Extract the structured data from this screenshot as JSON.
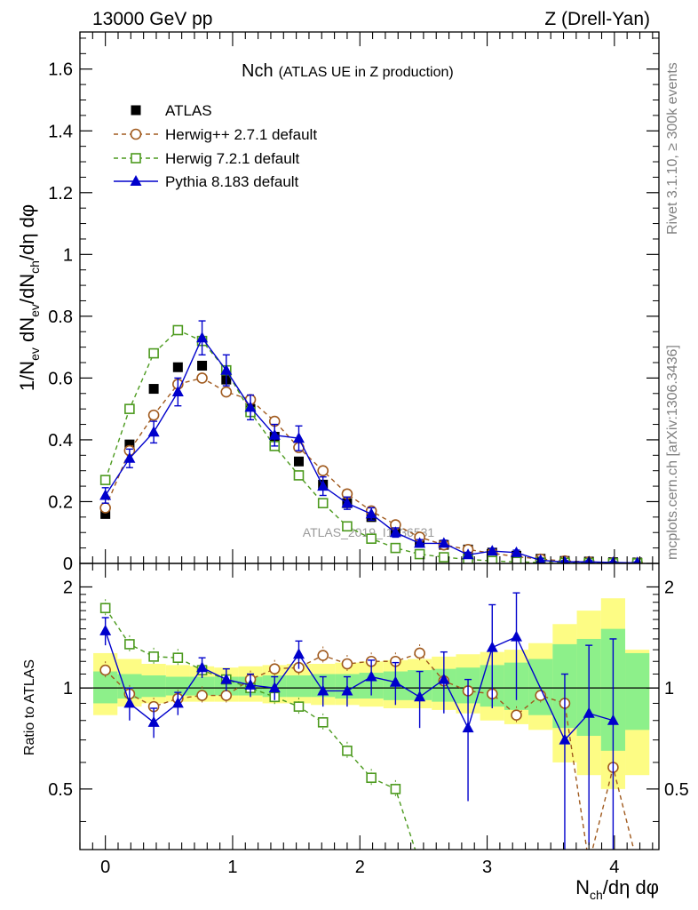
{
  "header": {
    "left": "13000 GeV pp",
    "right": "Z (Drell-Yan)"
  },
  "side_labels": {
    "rivet": "Rivet 3.1.10, ≥ 300k events",
    "mcplots": "mcplots.cern.ch [arXiv:1306.3436]"
  },
  "watermark": "ATLAS_2019_I1736531",
  "chart_data": [
    {
      "type": "scatter",
      "panel": "main",
      "title_main": "Nch",
      "title_sub": "(ATLAS UE in Z production)",
      "ylabel": "1/Nev dNev/dNch/dη dφ",
      "ylabel_parts": {
        "a": "1/N",
        "a_sub": "ev",
        "b": " dN",
        "b_sub": "ev",
        "c": "/dN",
        "c_sub": "ch",
        "d": "/dη dφ"
      },
      "xlim": [
        -0.2,
        4.35
      ],
      "ylim": [
        0,
        1.72
      ],
      "y_ticks": [
        0,
        0.2,
        0.4,
        0.6,
        0.8,
        1,
        1.2,
        1.4,
        1.6
      ],
      "y_tick_labels": [
        "0",
        "0.2",
        "0.4",
        "0.6",
        "0.8",
        "1",
        "1.2",
        "1.4",
        "1.6"
      ],
      "x": [
        0,
        0.19,
        0.38,
        0.57,
        0.76,
        0.95,
        1.14,
        1.33,
        1.52,
        1.71,
        1.9,
        2.09,
        2.28,
        2.47,
        2.66,
        2.85,
        3.04,
        3.23,
        3.42,
        3.61,
        3.8,
        3.99,
        4.18
      ],
      "legend": [
        "ATLAS",
        "Herwig++ 2.7.1 default",
        "Herwig 7.2.1 default",
        "Pythia 8.183 default"
      ],
      "series": [
        {
          "name": "ATLAS",
          "color": "#000000",
          "values": [
            0.16,
            0.385,
            0.565,
            0.635,
            0.64,
            0.595,
            0.5,
            0.41,
            0.33,
            0.255,
            0.195,
            0.15,
            0.105,
            0.07,
            0.06,
            0.045,
            0.035,
            0.025,
            0.015,
            0.008,
            0.006,
            0.004,
            0.003
          ]
        },
        {
          "name": "Herwig++ 2.7.1 default",
          "color": "#a05a1e",
          "values": [
            0.18,
            0.365,
            0.48,
            0.58,
            0.6,
            0.555,
            0.53,
            0.46,
            0.375,
            0.3,
            0.225,
            0.17,
            0.125,
            0.085,
            0.06,
            0.045,
            0.033,
            0.022,
            0.014,
            0.008,
            0.005,
            0.002,
            0.001
          ]
        },
        {
          "name": "Herwig 7.2.1 default",
          "color": "#4c9a1e",
          "values": [
            0.27,
            0.5,
            0.68,
            0.755,
            0.72,
            0.625,
            0.49,
            0.38,
            0.285,
            0.195,
            0.12,
            0.08,
            0.05,
            0.03,
            0.02,
            0.013,
            0.008,
            0.005,
            0.003,
            0.002,
            0.001,
            0.0006,
            0.0004
          ]
        },
        {
          "name": "Pythia 8.183 default",
          "color": "#0000cc",
          "values": [
            0.22,
            0.34,
            0.425,
            0.555,
            0.73,
            0.625,
            0.505,
            0.415,
            0.405,
            0.25,
            0.195,
            0.16,
            0.1,
            0.065,
            0.065,
            0.028,
            0.04,
            0.035,
            0.01,
            0.005,
            0.005,
            0.003,
            0.002
          ],
          "errors": [
            0.025,
            0.03,
            0.035,
            0.045,
            0.055,
            0.05,
            0.04,
            0.035,
            0.04,
            0.03,
            0.02,
            0.02,
            0.015,
            0.012,
            0.01,
            0.008,
            0.008,
            0.008,
            0.005,
            0.004,
            0.004,
            0.003,
            0.003
          ]
        }
      ]
    },
    {
      "type": "scatter",
      "panel": "ratio",
      "ylabel": "Ratio to ATLAS",
      "xlabel": "Nch/dη dφ",
      "xlabel_parts": {
        "a": "N",
        "a_sub": "ch",
        "b": "/dη dφ"
      },
      "xlim": [
        -0.2,
        4.35
      ],
      "ylim": [
        0.33,
        2.35
      ],
      "x_ticks": [
        0,
        1,
        2,
        3,
        4
      ],
      "x_tick_labels": [
        "0",
        "1",
        "2",
        "3",
        "4"
      ],
      "y_ticks": [
        0.5,
        1,
        2
      ],
      "y_tick_labels": [
        "0.5",
        "1",
        "2"
      ],
      "x": [
        0,
        0.19,
        0.38,
        0.57,
        0.76,
        0.95,
        1.14,
        1.33,
        1.52,
        1.71,
        1.9,
        2.09,
        2.28,
        2.47,
        2.66,
        2.85,
        3.04,
        3.23,
        3.42,
        3.61,
        3.8,
        3.99,
        4.18
      ],
      "band_yellow": [
        [
          0.83,
          1.27
        ],
        [
          0.88,
          1.22
        ],
        [
          0.9,
          1.18
        ],
        [
          0.91,
          1.17
        ],
        [
          0.91,
          1.16
        ],
        [
          0.91,
          1.15
        ],
        [
          0.91,
          1.16
        ],
        [
          0.9,
          1.17
        ],
        [
          0.9,
          1.18
        ],
        [
          0.89,
          1.18
        ],
        [
          0.89,
          1.19
        ],
        [
          0.88,
          1.2
        ],
        [
          0.87,
          1.21
        ],
        [
          0.87,
          1.22
        ],
        [
          0.86,
          1.24
        ],
        [
          0.84,
          1.26
        ],
        [
          0.8,
          1.28
        ],
        [
          0.78,
          1.3
        ],
        [
          0.75,
          1.36
        ],
        [
          0.6,
          1.55
        ],
        [
          0.55,
          1.7
        ],
        [
          0.5,
          1.85
        ],
        [
          0.55,
          1.3
        ]
      ],
      "band_green": [
        [
          0.9,
          1.12
        ],
        [
          0.93,
          1.1
        ],
        [
          0.94,
          1.09
        ],
        [
          0.95,
          1.08
        ],
        [
          0.95,
          1.08
        ],
        [
          0.95,
          1.08
        ],
        [
          0.95,
          1.08
        ],
        [
          0.94,
          1.09
        ],
        [
          0.94,
          1.09
        ],
        [
          0.94,
          1.1
        ],
        [
          0.93,
          1.1
        ],
        [
          0.93,
          1.11
        ],
        [
          0.92,
          1.12
        ],
        [
          0.92,
          1.13
        ],
        [
          0.91,
          1.14
        ],
        [
          0.9,
          1.15
        ],
        [
          0.88,
          1.17
        ],
        [
          0.86,
          1.19
        ],
        [
          0.83,
          1.22
        ],
        [
          0.76,
          1.35
        ],
        [
          0.72,
          1.4
        ],
        [
          0.65,
          1.5
        ],
        [
          0.75,
          1.27
        ]
      ],
      "series": [
        {
          "name": "Herwig++ 2.7.1 default",
          "color": "#a05a1e",
          "values": [
            1.13,
            0.96,
            0.88,
            0.93,
            0.95,
            0.95,
            1.06,
            1.14,
            1.15,
            1.25,
            1.18,
            1.2,
            1.2,
            1.27,
            1.05,
            0.98,
            0.96,
            0.83,
            0.95,
            0.9,
            0.3,
            0.58,
            0.3
          ]
        },
        {
          "name": "Herwig 7.2.1 default",
          "color": "#4c9a1e",
          "values": [
            1.73,
            1.35,
            1.24,
            1.23,
            1.13,
            1.06,
            1.0,
            0.94,
            0.88,
            0.79,
            0.65,
            0.54,
            0.5,
            0.3,
            0.3,
            0.3,
            0.3,
            0.3,
            0.3,
            0.3,
            0.3,
            0.3,
            0.3
          ]
        },
        {
          "name": "Pythia 8.183 default",
          "color": "#0000cc",
          "values": [
            1.48,
            0.9,
            0.79,
            0.9,
            1.15,
            1.06,
            1.02,
            1.0,
            1.26,
            0.98,
            0.98,
            1.08,
            1.04,
            0.94,
            1.06,
            0.76,
            1.32,
            1.42,
            null,
            0.7,
            0.84,
            0.8,
            null
          ],
          "errors": [
            0.14,
            0.1,
            0.08,
            0.07,
            0.08,
            0.08,
            0.08,
            0.08,
            0.12,
            0.1,
            0.1,
            0.13,
            0.15,
            0.18,
            0.22,
            0.3,
            0.45,
            0.5,
            0,
            0.4,
            0.5,
            0.6,
            0
          ]
        }
      ]
    }
  ]
}
